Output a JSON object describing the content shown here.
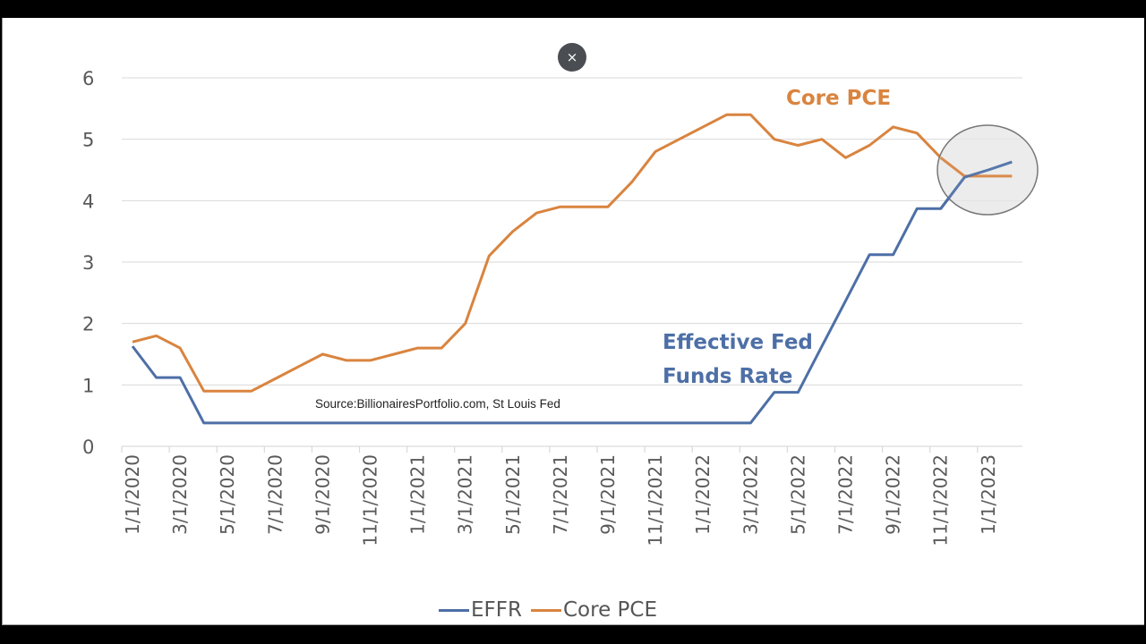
{
  "close_button": {
    "label": "×"
  },
  "annotations": {
    "core_pce": "Core PCE",
    "effr_line1": "Effective Fed",
    "effr_line2": "Funds Rate",
    "source": "Source:BillionairesPortfolio.com, St Louis Fed"
  },
  "colors": {
    "effr": "#4d6fa6",
    "core_pce": "#d9843f",
    "grid": "#d9d9d9",
    "highlight_fill": "#e6e6e6",
    "highlight_stroke": "#777777"
  },
  "chart_data": {
    "type": "line",
    "title": "",
    "xlabel": "",
    "ylabel": "",
    "ylim": [
      0,
      6
    ],
    "yticks": [
      "0",
      "1",
      "2",
      "3",
      "4",
      "5",
      "6"
    ],
    "grid": true,
    "legend_position": "bottom",
    "x": [
      "1/1/2020",
      "2/1/2020",
      "3/1/2020",
      "4/1/2020",
      "5/1/2020",
      "6/1/2020",
      "7/1/2020",
      "8/1/2020",
      "9/1/2020",
      "10/1/2020",
      "11/1/2020",
      "12/1/2020",
      "1/1/2021",
      "2/1/2021",
      "3/1/2021",
      "4/1/2021",
      "5/1/2021",
      "6/1/2021",
      "7/1/2021",
      "8/1/2021",
      "9/1/2021",
      "10/1/2021",
      "11/1/2021",
      "12/1/2021",
      "1/1/2022",
      "2/1/2022",
      "3/1/2022",
      "4/1/2022",
      "5/1/2022",
      "6/1/2022",
      "7/1/2022",
      "8/1/2022",
      "9/1/2022",
      "10/1/2022",
      "11/1/2022",
      "12/1/2022",
      "1/1/2023",
      "2/1/2023"
    ],
    "xtick_labels": [
      "1/1/2020",
      "3/1/2020",
      "5/1/2020",
      "7/1/2020",
      "9/1/2020",
      "11/1/2020",
      "1/1/2021",
      "3/1/2021",
      "5/1/2021",
      "7/1/2021",
      "9/1/2021",
      "11/1/2021",
      "1/1/2022",
      "3/1/2022",
      "5/1/2022",
      "7/1/2022",
      "9/1/2022",
      "11/1/2022",
      "1/1/2023"
    ],
    "series": [
      {
        "name": "EFFR",
        "values": [
          1.63,
          1.12,
          1.12,
          0.38,
          0.38,
          0.38,
          0.38,
          0.38,
          0.38,
          0.38,
          0.38,
          0.38,
          0.38,
          0.38,
          0.38,
          0.38,
          0.38,
          0.38,
          0.38,
          0.38,
          0.38,
          0.38,
          0.38,
          0.38,
          0.38,
          0.38,
          0.38,
          0.88,
          0.88,
          1.63,
          2.37,
          3.12,
          3.12,
          3.87,
          3.87,
          4.38,
          4.5,
          4.63
        ]
      },
      {
        "name": "Core PCE",
        "values": [
          1.7,
          1.8,
          1.6,
          0.9,
          0.9,
          0.9,
          1.1,
          1.3,
          1.5,
          1.4,
          1.4,
          1.5,
          1.6,
          1.6,
          2.0,
          3.1,
          3.5,
          3.8,
          3.9,
          3.9,
          3.9,
          4.3,
          4.8,
          5.0,
          5.2,
          5.4,
          5.4,
          5.0,
          4.9,
          5.0,
          4.7,
          4.9,
          5.2,
          5.1,
          4.7,
          4.4,
          4.4,
          4.4
        ]
      }
    ],
    "legend": [
      "EFFR",
      "Core PCE"
    ]
  }
}
